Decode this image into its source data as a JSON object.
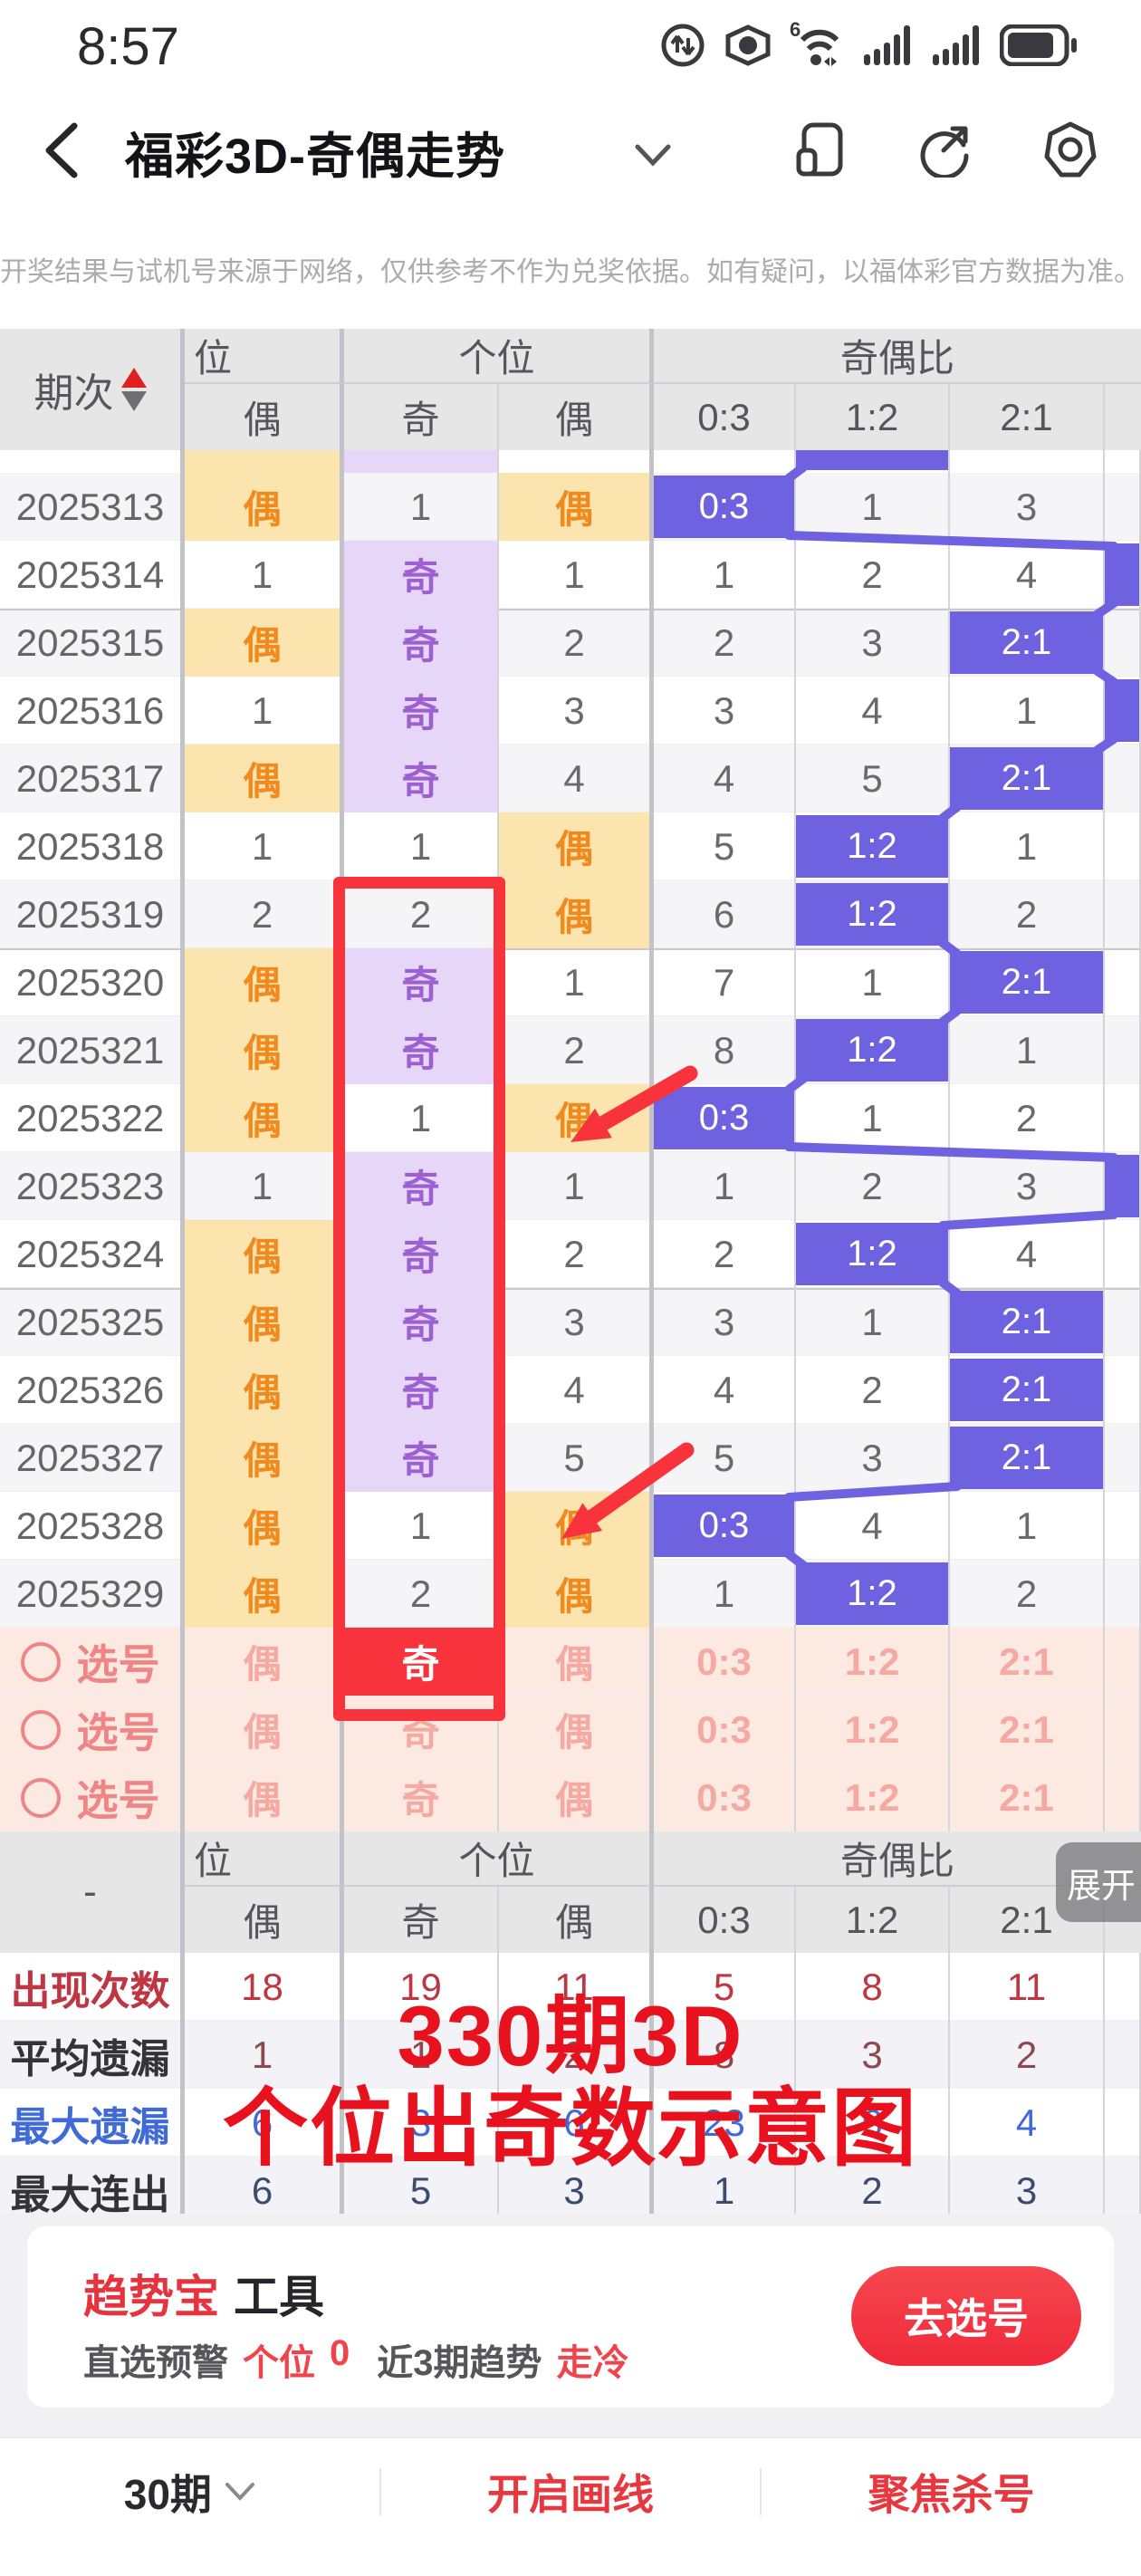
{
  "status_bar": {
    "time": "8:57",
    "icons": [
      "data-usage-icon",
      "eye-icon",
      "wifi-6g-icon",
      "signal-icon",
      "signal2-icon",
      "battery-icon"
    ]
  },
  "nav": {
    "title": "福彩3D-奇偶走势",
    "icons": [
      "back-icon",
      "dropdown-icon",
      "multiwindow-icon",
      "share-icon",
      "settings-icon"
    ]
  },
  "disclaimer": "开奖结果与试机号来源于网络，仅供参考不作为兑奖依据。如有疑问，以福体彩官方数据为准。",
  "colors": {
    "highlight_blue": "#6E62E1",
    "even_bg": "#FCE4AE",
    "even_text": "#F18A1E",
    "odd_bg": "#E6D6F7",
    "odd_text": "#9D60D1",
    "select_bg": "#FBE9E2",
    "select_text": "#F5A9A1",
    "red_cell": "#F8333C",
    "annotation_red": "#F8333C",
    "caption_red": "#E8111E",
    "accent_red": "#E7333D"
  },
  "table": {
    "header": {
      "period": "期次",
      "group1": "位",
      "group2": "个位",
      "group3": "奇偶比",
      "sub": [
        "偶",
        "奇",
        "偶",
        "0:3",
        "1:2",
        "2:1"
      ]
    },
    "sliver": [
      "e",
      "o",
      "",
      "",
      "h",
      ""
    ],
    "rows": [
      {
        "period": "2025313",
        "cells": [
          [
            "偶",
            "e"
          ],
          [
            "1",
            "n"
          ],
          [
            "偶",
            "e"
          ],
          [
            "0:3",
            "h"
          ],
          [
            "1",
            "n"
          ],
          [
            "3",
            "n"
          ]
        ],
        "right_hl": false
      },
      {
        "period": "2025314",
        "cells": [
          [
            "1",
            "n"
          ],
          [
            "奇",
            "o"
          ],
          [
            "1",
            "n"
          ],
          [
            "1",
            "n"
          ],
          [
            "2",
            "n"
          ],
          [
            "4",
            "n"
          ]
        ],
        "right_hl": true
      },
      {
        "period": "2025315",
        "cells": [
          [
            "偶",
            "e"
          ],
          [
            "奇",
            "o"
          ],
          [
            "2",
            "n"
          ],
          [
            "2",
            "n"
          ],
          [
            "3",
            "n"
          ],
          [
            "2:1",
            "h"
          ]
        ],
        "right_hl": false
      },
      {
        "period": "2025316",
        "cells": [
          [
            "1",
            "n"
          ],
          [
            "奇",
            "o"
          ],
          [
            "3",
            "n"
          ],
          [
            "3",
            "n"
          ],
          [
            "4",
            "n"
          ],
          [
            "1",
            "n"
          ]
        ],
        "right_hl": true
      },
      {
        "period": "2025317",
        "cells": [
          [
            "偶",
            "e"
          ],
          [
            "奇",
            "o"
          ],
          [
            "4",
            "n"
          ],
          [
            "4",
            "n"
          ],
          [
            "5",
            "n"
          ],
          [
            "2:1",
            "h"
          ]
        ],
        "right_hl": false
      },
      {
        "period": "2025318",
        "cells": [
          [
            "1",
            "n"
          ],
          [
            "1",
            "n"
          ],
          [
            "偶",
            "e"
          ],
          [
            "5",
            "n"
          ],
          [
            "1:2",
            "h"
          ],
          [
            "1",
            "n"
          ]
        ],
        "right_hl": false
      },
      {
        "period": "2025319",
        "cells": [
          [
            "2",
            "n"
          ],
          [
            "2",
            "n"
          ],
          [
            "偶",
            "e"
          ],
          [
            "6",
            "n"
          ],
          [
            "1:2",
            "h"
          ],
          [
            "2",
            "n"
          ]
        ],
        "right_hl": false
      },
      {
        "period": "2025320",
        "cells": [
          [
            "偶",
            "e"
          ],
          [
            "奇",
            "o"
          ],
          [
            "1",
            "n"
          ],
          [
            "7",
            "n"
          ],
          [
            "1",
            "n"
          ],
          [
            "2:1",
            "h"
          ]
        ],
        "right_hl": false
      },
      {
        "period": "2025321",
        "cells": [
          [
            "偶",
            "e"
          ],
          [
            "奇",
            "o"
          ],
          [
            "2",
            "n"
          ],
          [
            "8",
            "n"
          ],
          [
            "1:2",
            "h"
          ],
          [
            "1",
            "n"
          ]
        ],
        "right_hl": false
      },
      {
        "period": "2025322",
        "cells": [
          [
            "偶",
            "e"
          ],
          [
            "1",
            "n"
          ],
          [
            "偶",
            "e"
          ],
          [
            "0:3",
            "h"
          ],
          [
            "1",
            "n"
          ],
          [
            "2",
            "n"
          ]
        ],
        "right_hl": false
      },
      {
        "period": "2025323",
        "cells": [
          [
            "1",
            "n"
          ],
          [
            "奇",
            "o"
          ],
          [
            "1",
            "n"
          ],
          [
            "1",
            "n"
          ],
          [
            "2",
            "n"
          ],
          [
            "3",
            "n"
          ]
        ],
        "right_hl": true
      },
      {
        "period": "2025324",
        "cells": [
          [
            "偶",
            "e"
          ],
          [
            "奇",
            "o"
          ],
          [
            "2",
            "n"
          ],
          [
            "2",
            "n"
          ],
          [
            "1:2",
            "h"
          ],
          [
            "4",
            "n"
          ]
        ],
        "right_hl": false
      },
      {
        "period": "2025325",
        "cells": [
          [
            "偶",
            "e"
          ],
          [
            "奇",
            "o"
          ],
          [
            "3",
            "n"
          ],
          [
            "3",
            "n"
          ],
          [
            "1",
            "n"
          ],
          [
            "2:1",
            "h"
          ]
        ],
        "right_hl": false
      },
      {
        "period": "2025326",
        "cells": [
          [
            "偶",
            "e"
          ],
          [
            "奇",
            "o"
          ],
          [
            "4",
            "n"
          ],
          [
            "4",
            "n"
          ],
          [
            "2",
            "n"
          ],
          [
            "2:1",
            "h"
          ]
        ],
        "right_hl": false
      },
      {
        "period": "2025327",
        "cells": [
          [
            "偶",
            "e"
          ],
          [
            "奇",
            "o"
          ],
          [
            "5",
            "n"
          ],
          [
            "5",
            "n"
          ],
          [
            "3",
            "n"
          ],
          [
            "2:1",
            "h"
          ]
        ],
        "right_hl": false
      },
      {
        "period": "2025328",
        "cells": [
          [
            "偶",
            "e"
          ],
          [
            "1",
            "n"
          ],
          [
            "偶",
            "e"
          ],
          [
            "0:3",
            "h"
          ],
          [
            "4",
            "n"
          ],
          [
            "1",
            "n"
          ]
        ],
        "right_hl": false
      },
      {
        "period": "2025329",
        "cells": [
          [
            "偶",
            "e"
          ],
          [
            "2",
            "n"
          ],
          [
            "偶",
            "e"
          ],
          [
            "1",
            "n"
          ],
          [
            "1:2",
            "h"
          ],
          [
            "2",
            "n"
          ]
        ],
        "right_hl": false
      }
    ],
    "select_label": "选号",
    "select_rows": [
      {
        "cells": [
          [
            "偶",
            "p"
          ],
          [
            "奇",
            "r"
          ],
          [
            "偶",
            "p"
          ],
          [
            "0:3",
            "p"
          ],
          [
            "1:2",
            "p"
          ],
          [
            "2:1",
            "p"
          ]
        ]
      },
      {
        "cells": [
          [
            "偶",
            "p"
          ],
          [
            "奇",
            "p"
          ],
          [
            "偶",
            "p"
          ],
          [
            "0:3",
            "p"
          ],
          [
            "1:2",
            "p"
          ],
          [
            "2:1",
            "p"
          ]
        ]
      },
      {
        "cells": [
          [
            "偶",
            "p"
          ],
          [
            "奇",
            "p"
          ],
          [
            "偶",
            "p"
          ],
          [
            "0:3",
            "p"
          ],
          [
            "1:2",
            "p"
          ],
          [
            "2:1",
            "p"
          ]
        ]
      }
    ]
  },
  "summary": {
    "dash": "-",
    "expand_label": "展开",
    "rows": [
      {
        "label": "出现次数",
        "cls": "c-red",
        "vcls": "c-red",
        "values": [
          "18",
          "19",
          "11",
          "5",
          "8",
          "11"
        ]
      },
      {
        "label": "平均遗漏",
        "cls": "c-dark",
        "vcls": "c-maroon",
        "values": [
          "1",
          "1",
          "2",
          "8",
          "3",
          "2"
        ]
      },
      {
        "label": "最大遗漏",
        "cls": "c-blue",
        "vcls": "c-blue",
        "values": [
          "6",
          "3",
          "6",
          "23",
          "6",
          "4"
        ]
      },
      {
        "label": "最大连出",
        "cls": "c-dark",
        "vcls": "c-navy",
        "values": [
          "6",
          "5",
          "3",
          "1",
          "2",
          "3"
        ]
      }
    ]
  },
  "caption": {
    "line1": "330期3D",
    "line2": "个位出奇数示意图"
  },
  "tool_card": {
    "brand": "趋势宝",
    "brand_suffix": "工具",
    "warn_label": "直选预警",
    "warn_pos": "个位",
    "warn_value": "0",
    "trend_label": "近3期趋势",
    "trend_value": "走冷",
    "button": "去选号"
  },
  "footer": {
    "periods": "30期",
    "draw_line": "开启画线",
    "focus_kill": "聚焦杀号"
  }
}
